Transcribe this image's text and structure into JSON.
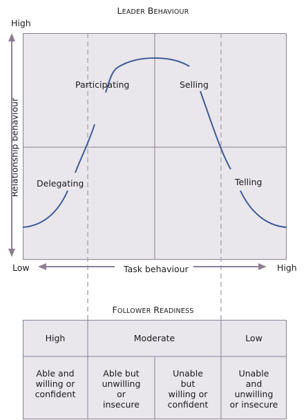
{
  "leader_title": "Leader behaviour",
  "follower_title": "Follower readiness",
  "y_axis": {
    "label": "Relationship behaviour",
    "high": "High",
    "low": "Low"
  },
  "x_axis": {
    "label": "Task behaviour",
    "low": "Low",
    "high": "High"
  },
  "styles": {
    "delegating": "Delegating",
    "participating": "Participating",
    "selling": "Selling",
    "telling": "Telling"
  },
  "readiness": {
    "high": "High",
    "moderate": "Moderate",
    "low": "Low"
  },
  "descriptions": [
    [
      "Able and",
      "willing or",
      "confident"
    ],
    [
      "Able but",
      "unwilling",
      "or",
      "insecure"
    ],
    [
      "Unable",
      "but",
      "willing or",
      "confident"
    ],
    [
      "Unable",
      "and",
      "unwilling",
      "or insecure"
    ]
  ],
  "colors": {
    "grid_bg": "#e9e6ec",
    "border": "#8c7f94",
    "curve": "#3d5a94",
    "arrow": "#8c7f94",
    "dashed": "#a9a3ad"
  }
}
